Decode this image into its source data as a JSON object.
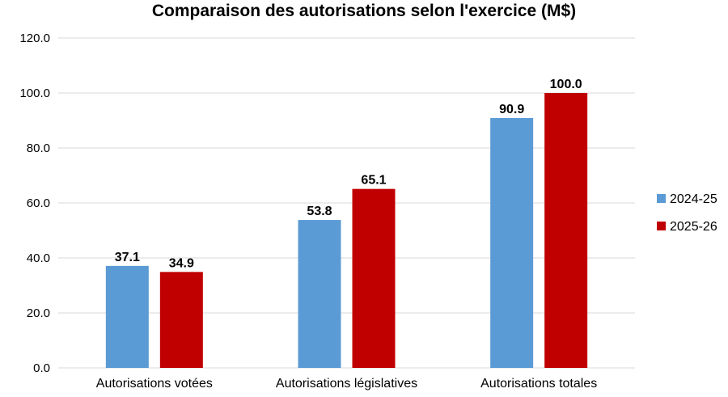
{
  "chart_data": {
    "type": "bar",
    "title": "Comparaison des autorisations selon l'exercice (M$)",
    "categories": [
      "Autorisations votées",
      "Autorisations législatives",
      "Autorisations totales"
    ],
    "series": [
      {
        "name": "2024-25",
        "color": "#5b9bd5",
        "values": [
          37.1,
          53.8,
          90.9
        ]
      },
      {
        "name": "2025-26",
        "color": "#c00000",
        "values": [
          34.9,
          65.1,
          100.0
        ]
      }
    ],
    "ylim": [
      0,
      120
    ],
    "yticks": [
      0,
      20,
      40,
      60,
      80,
      100,
      120
    ],
    "ytick_labels": [
      "0.0",
      "20.0",
      "40.0",
      "60.0",
      "80.0",
      "100.0",
      "120.0"
    ],
    "data_labels": [
      [
        "37.1",
        "53.8",
        "90.9"
      ],
      [
        "34.9",
        "65.1",
        "100.0"
      ]
    ],
    "grid": true,
    "legend_position": "right"
  }
}
